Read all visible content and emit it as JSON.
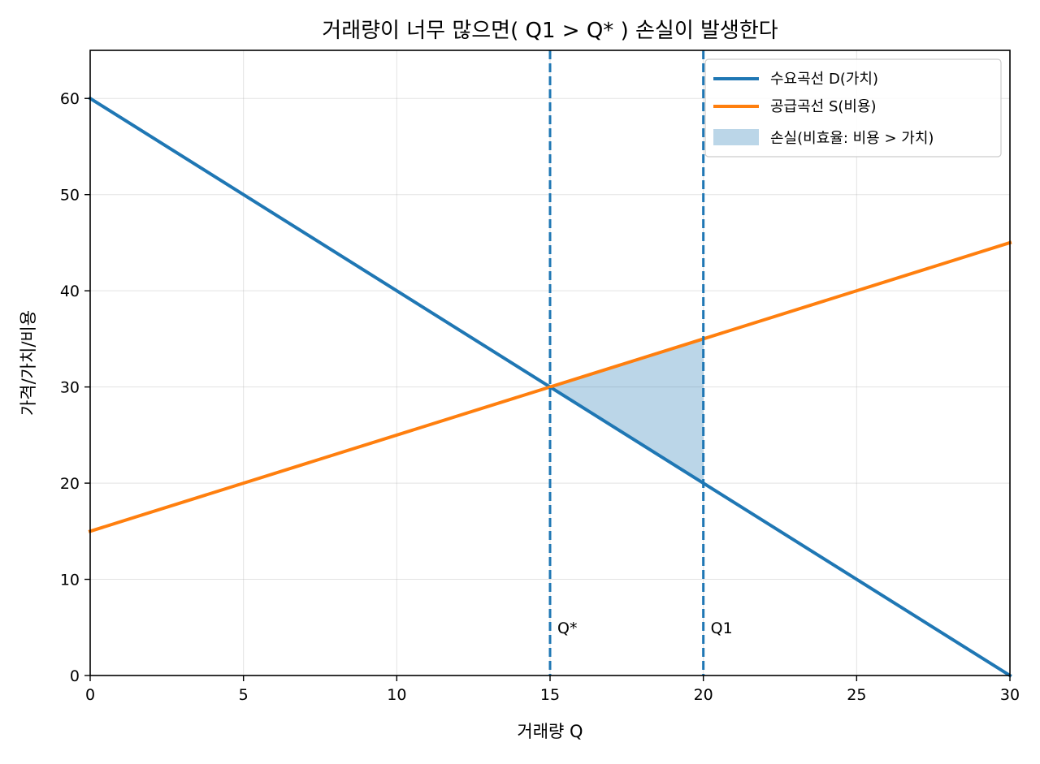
{
  "chart_data": {
    "type": "line",
    "title": "거래량이 너무 많으면( Q1 > Q* ) 손실이 발생한다",
    "xlabel": "거래량 Q",
    "ylabel": "가격/가치/비용",
    "xlim": [
      0,
      30
    ],
    "ylim": [
      0,
      65
    ],
    "xticks": [
      0,
      5,
      10,
      15,
      20,
      25,
      30
    ],
    "yticks": [
      0,
      10,
      20,
      30,
      40,
      50,
      60
    ],
    "grid": true,
    "legend_position": "top-right",
    "series": [
      {
        "name": "수요곡선 D(가치)",
        "color": "#1f77b4",
        "x": [
          0,
          30
        ],
        "y": [
          60,
          0
        ]
      },
      {
        "name": "공급곡선 S(비용)",
        "color": "#ff7f0e",
        "x": [
          0,
          30
        ],
        "y": [
          15,
          45
        ]
      }
    ],
    "shaded_area": {
      "name": "손실(비효율: 비용 > 가치)",
      "color": "#1f77b4",
      "opacity": 0.3,
      "x": [
        15,
        20
      ],
      "upper": [
        30,
        35
      ],
      "lower": [
        30,
        20
      ]
    },
    "vlines": [
      {
        "x": 15,
        "label": "Q*",
        "color": "#1f77b4",
        "style": "dashed"
      },
      {
        "x": 20,
        "label": "Q1",
        "color": "#1f77b4",
        "style": "dashed"
      }
    ]
  }
}
